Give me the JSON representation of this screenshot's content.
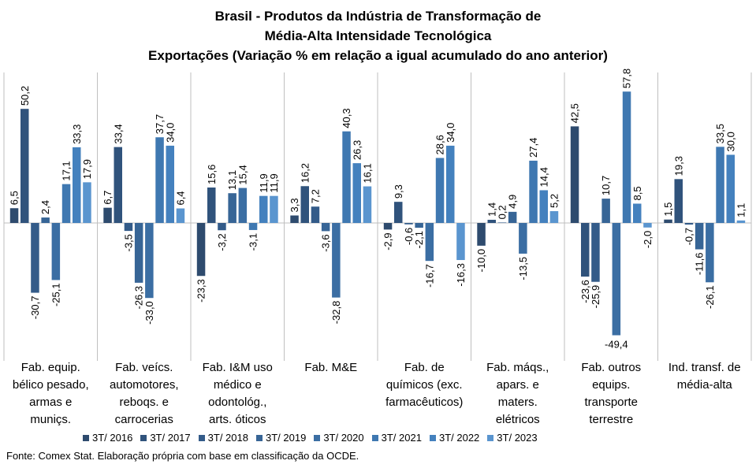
{
  "title_lines": [
    "Brasil - Produtos da Indústria de Transformação  de",
    "Média-Alta  Intensidade Tecnológica",
    "Exportações  (Variação % em relação a igual acumulado  do ano anterior)"
  ],
  "source": "Fonte: Comex Stat. Elaboração própria com base em classificação da OCDE.",
  "chart_data": {
    "type": "bar",
    "categories": [
      [
        "Fab. equip.",
        "bélico pesado,",
        "armas e",
        "muniçs."
      ],
      [
        "Fab. veícs.",
        "automotores,",
        "reboqs. e",
        "carrocerias"
      ],
      [
        "Fab. I&M uso",
        "médico e",
        "odontológ.,",
        "arts. óticos"
      ],
      [
        "Fab. M&E"
      ],
      [
        "Fab. de",
        "químicos (exc.",
        "farmacêuticos)"
      ],
      [
        "Fab. máqs.,",
        "apars. e",
        "maters.",
        "elétricos"
      ],
      [
        "Fab. outros",
        "equips.",
        "transporte",
        "terrestre"
      ],
      [
        "Ind. transf. de",
        "média-alta"
      ]
    ],
    "series": [
      {
        "name": "3T/ 2016",
        "color": "#2e4b6e",
        "values": [
          6.5,
          6.7,
          -23.3,
          3.3,
          -2.9,
          -10.0,
          42.5,
          1.5
        ]
      },
      {
        "name": "3T/ 2017",
        "color": "#30537c",
        "values": [
          50.2,
          33.4,
          15.6,
          16.2,
          9.3,
          1.4,
          -23.6,
          19.3
        ]
      },
      {
        "name": "3T/ 2018",
        "color": "#335b89",
        "values": [
          -30.7,
          -3.5,
          -3.2,
          7.2,
          -0.6,
          0.2,
          -25.9,
          -0.7
        ]
      },
      {
        "name": "3T/ 2019",
        "color": "#376596",
        "values": [
          2.4,
          -26.3,
          13.1,
          -3.6,
          -2.1,
          4.9,
          10.7,
          -11.6
        ]
      },
      {
        "name": "3T/ 2020",
        "color": "#3b6ea3",
        "values": [
          -25.1,
          -33.0,
          15.4,
          -32.8,
          -16.7,
          -13.5,
          -49.4,
          -26.1
        ]
      },
      {
        "name": "3T/ 2021",
        "color": "#3f78b1",
        "values": [
          17.1,
          37.7,
          -3.1,
          40.3,
          28.6,
          27.4,
          57.8,
          33.5
        ]
      },
      {
        "name": "3T/ 2022",
        "color": "#4481be",
        "values": [
          33.3,
          34.0,
          11.9,
          26.3,
          34.0,
          14.4,
          8.5,
          30.0
        ]
      },
      {
        "name": "3T/ 2023",
        "color": "#5a95cf",
        "values": [
          17.9,
          6.4,
          11.9,
          16.1,
          -16.3,
          5.2,
          -2.0,
          1.1
        ]
      }
    ],
    "labels": [
      [
        "6,5",
        "50,2",
        "-30,7",
        "2,4",
        "-25,1",
        "17,1",
        "33,3",
        "17,9"
      ],
      [
        "6,7",
        "33,4",
        "-3,5",
        "-26,3",
        "-33,0",
        "37,7",
        "34,0",
        "6,4"
      ],
      [
        "-23,3",
        "15,6",
        "-3,2",
        "13,1",
        "15,4",
        "-3,1",
        "11,9",
        "11,9"
      ],
      [
        "3,3",
        "16,2",
        "7,2",
        "-3,6",
        "-32,8",
        "40,3",
        "26,3",
        "16,1"
      ],
      [
        "-2,9",
        "9,3",
        "-0,6",
        "-2,1",
        "-16,7",
        "28,6",
        "34,0",
        "-16,3"
      ],
      [
        "-10,0",
        "1,4",
        "0,2",
        "4,9",
        "-13,5",
        "27,4",
        "14,4",
        "5,2"
      ],
      [
        "42,5",
        "-23,6",
        "-25,9",
        "10,7",
        "-49,4",
        "57,8",
        "8,5",
        "-2,0"
      ],
      [
        "1,5",
        "19,3",
        "-0,7",
        "-11,6",
        "-26,1",
        "33,5",
        "30,0",
        "1,1"
      ]
    ],
    "ylim": [
      -55,
      70
    ],
    "grid": false,
    "legend_position": "bottom"
  }
}
